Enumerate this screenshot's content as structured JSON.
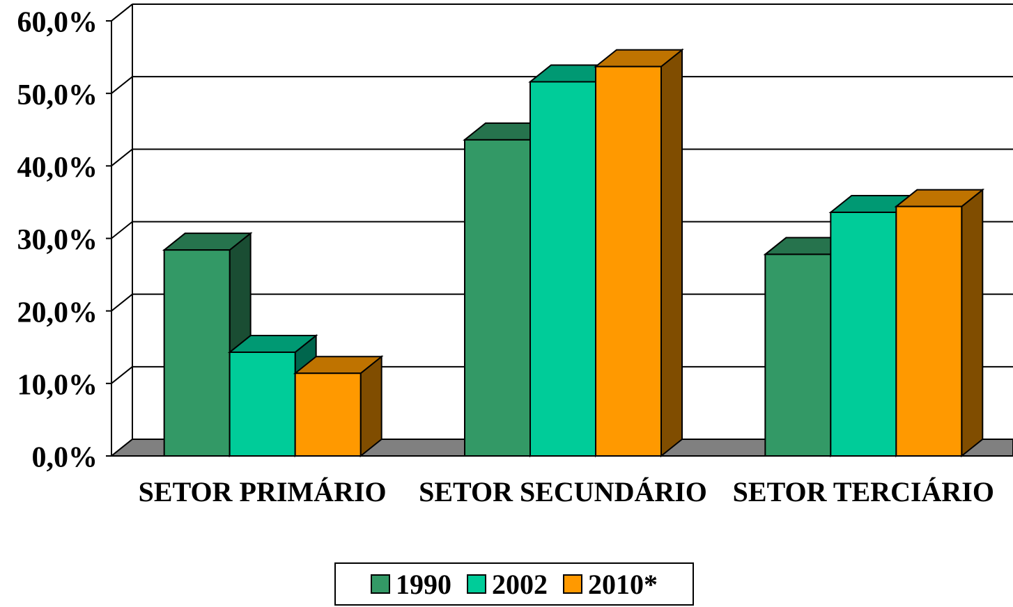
{
  "chart_data": {
    "type": "bar3d",
    "categories": [
      "SETOR PRIMÁRIO",
      "SETOR SECUNDÁRIO",
      "SETOR TERCIÁRIO"
    ],
    "series": [
      {
        "name": "1990",
        "color": "#339966",
        "values": [
          28.4,
          43.6,
          27.8
        ]
      },
      {
        "name": "2002",
        "color": "#00cc99",
        "values": [
          14.3,
          51.6,
          33.6
        ]
      },
      {
        "name": "2010*",
        "color": "#ff9900",
        "values": [
          11.4,
          53.7,
          34.4
        ]
      }
    ],
    "ylim": [
      0,
      60
    ],
    "yticks": [
      {
        "value": 0,
        "label": "0,0%"
      },
      {
        "value": 10,
        "label": "10,0%"
      },
      {
        "value": 20,
        "label": "20,0%"
      },
      {
        "value": 30,
        "label": "30,0%"
      },
      {
        "value": 40,
        "label": "40,0%"
      },
      {
        "value": 50,
        "label": "50,0%"
      },
      {
        "value": 60,
        "label": "60,0%"
      }
    ],
    "grid": true
  }
}
